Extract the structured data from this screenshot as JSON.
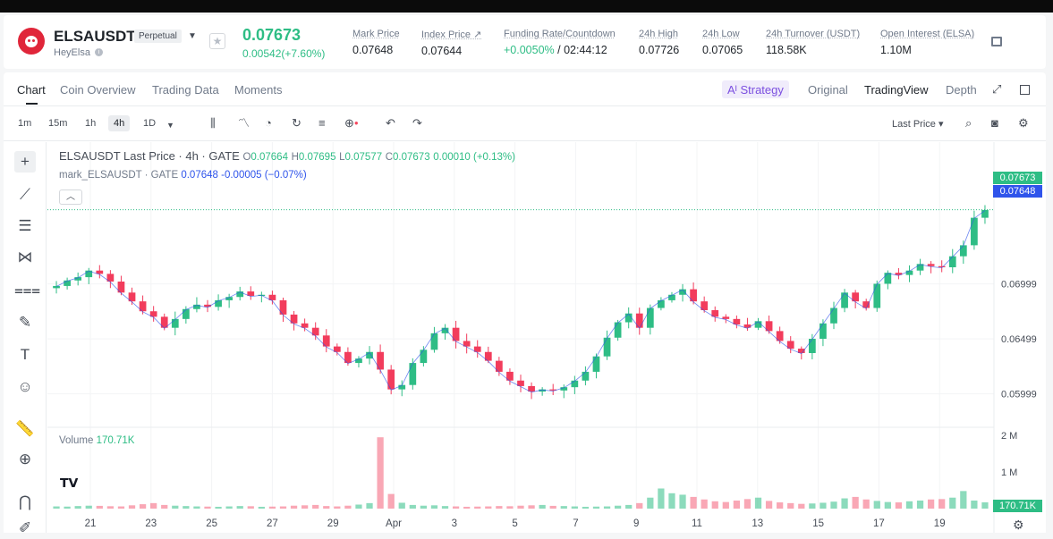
{
  "header": {
    "symbol": "ELSAUSDT",
    "contract_type": "Perpetual",
    "sub_name": "HeyElsa",
    "last_price": "0.07673",
    "change": "0.00542(+7.60%)",
    "stats": [
      {
        "label": "Mark Price",
        "value": "0.07648"
      },
      {
        "label": "Index Price ↗",
        "value": "0.07644"
      },
      {
        "label": "Funding Rate/Countdown",
        "value_green": "+0.0050%",
        "value": " / 02:44:12"
      },
      {
        "label": "24h High",
        "value": "0.07726"
      },
      {
        "label": "24h Low",
        "value": "0.07065"
      },
      {
        "label": "24h Turnover (USDT)",
        "value": "118.58K"
      },
      {
        "label": "Open Interest (ELSA)",
        "value": "1.10M"
      }
    ]
  },
  "tabs": [
    "Chart",
    "Coin Overview",
    "Trading Data",
    "Moments"
  ],
  "right_tabs": {
    "strategy": "Aᴵ Strategy",
    "original": "Original",
    "tradingview": "TradingView",
    "depth": "Depth"
  },
  "intervals": [
    "1m",
    "15m",
    "1h",
    "4h",
    "1D"
  ],
  "active_interval": "4h",
  "price_type": "Last Price",
  "legend": {
    "main_title": "ELSAUSDT Last Price · 4h · GATE",
    "ohlc": {
      "o": "0.07664",
      "h": "0.07695",
      "l": "0.07577",
      "c": "0.07673",
      "chg": "0.00010 (+0.13%)"
    },
    "mark_label": "mark_ELSAUSDT · GATE",
    "mark_value": "0.07648",
    "mark_chg": "-0.00005 (−0.07%)",
    "volume_label": "Volume",
    "volume_value": "170.71K"
  },
  "price_tags": {
    "last": "0.07673",
    "mark": "0.07648",
    "volume": "170.71K"
  },
  "chart_data": {
    "type": "candlestick",
    "y_ticks": [
      "0.06999",
      "0.06499",
      "0.05999"
    ],
    "volume_ticks": [
      "2 M",
      "1 M"
    ],
    "x_ticks": [
      "21",
      "23",
      "25",
      "27",
      "29",
      "Apr",
      "3",
      "5",
      "7",
      "9",
      "11",
      "13",
      "15",
      "17",
      "19"
    ],
    "close_path": [
      0.0698,
      0.0703,
      0.0706,
      0.0712,
      0.0709,
      0.0702,
      0.0692,
      0.0684,
      0.0675,
      0.067,
      0.066,
      0.0668,
      0.0677,
      0.0681,
      0.0679,
      0.0685,
      0.0688,
      0.0693,
      0.0689,
      0.069,
      0.0685,
      0.0672,
      0.0664,
      0.066,
      0.0653,
      0.0643,
      0.0638,
      0.0628,
      0.0632,
      0.0638,
      0.0622,
      0.0604,
      0.0608,
      0.0628,
      0.064,
      0.0655,
      0.066,
      0.0648,
      0.0643,
      0.0638,
      0.063,
      0.062,
      0.0612,
      0.0607,
      0.0602,
      0.0604,
      0.0603,
      0.0606,
      0.0612,
      0.062,
      0.0634,
      0.0651,
      0.0665,
      0.0673,
      0.066,
      0.0678,
      0.0685,
      0.069,
      0.0695,
      0.0684,
      0.0676,
      0.067,
      0.0668,
      0.0663,
      0.066,
      0.0666,
      0.0657,
      0.0648,
      0.0641,
      0.0637,
      0.065,
      0.0664,
      0.0678,
      0.0692,
      0.0684,
      0.0678,
      0.07,
      0.071,
      0.0708,
      0.0712,
      0.0718,
      0.0716,
      0.0715,
      0.0725,
      0.0735,
      0.076,
      0.0767
    ],
    "volumes_k": [
      60,
      55,
      70,
      80,
      75,
      65,
      60,
      90,
      120,
      150,
      100,
      80,
      70,
      60,
      55,
      50,
      60,
      70,
      65,
      50,
      55,
      60,
      80,
      90,
      100,
      70,
      60,
      80,
      110,
      150,
      1950,
      400,
      160,
      100,
      80,
      90,
      70,
      60,
      50,
      55,
      60,
      70,
      65,
      80,
      90,
      100,
      75,
      70,
      60,
      50,
      55,
      60,
      80,
      100,
      150,
      300,
      550,
      420,
      380,
      320,
      250,
      200,
      180,
      220,
      260,
      300,
      210,
      170,
      150,
      130,
      140,
      160,
      190,
      280,
      320,
      250,
      210,
      180,
      170,
      200,
      220,
      250,
      260,
      300,
      480,
      220,
      171
    ],
    "volume_colors": "mixed"
  }
}
